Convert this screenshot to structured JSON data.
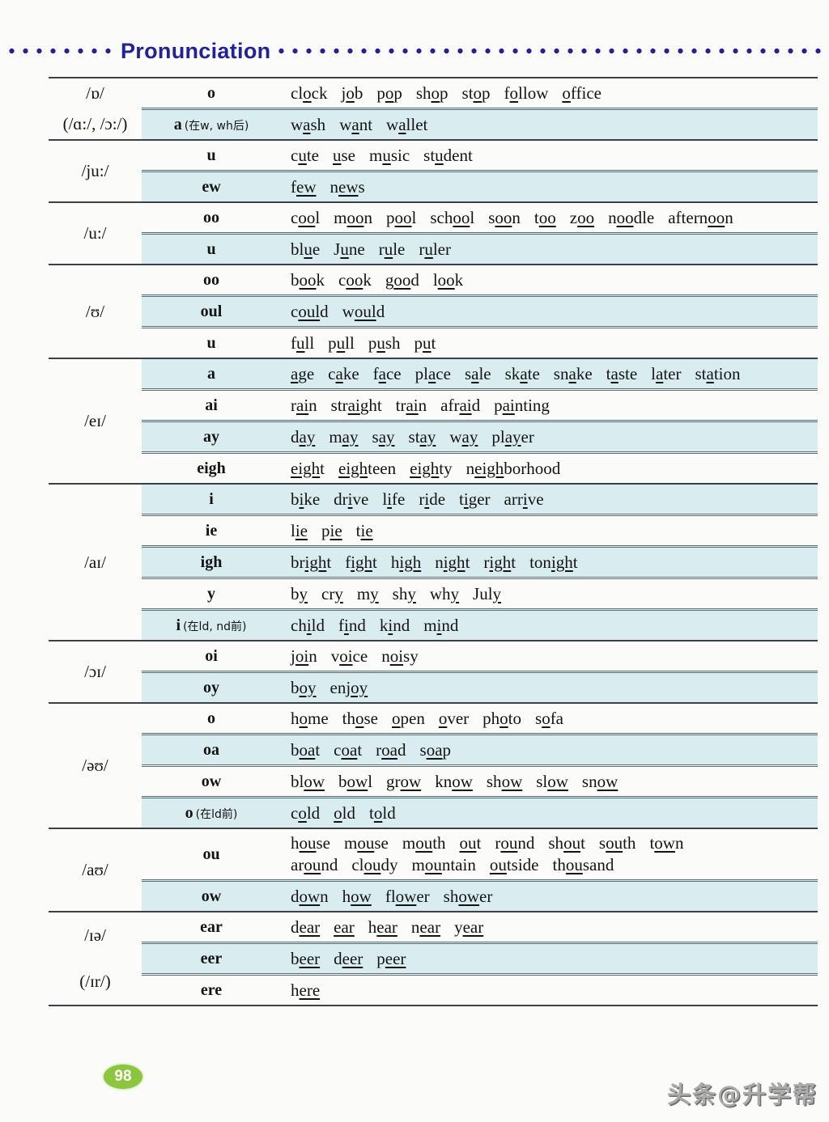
{
  "header": {
    "title": "Pronunciation",
    "accent_color": "#23219a"
  },
  "table": {
    "row_shade_color": "#d9edf1",
    "groups": [
      {
        "symbol": [
          "/ɒ/",
          "(/ɑ:/, /ɔ:/)"
        ],
        "rows": [
          {
            "pattern": "o",
            "note": "",
            "lines": [
              [
                "cl_o_ck",
                "j_o_b",
                "p_o_p",
                "sh_o_p",
                "st_o_p",
                "f_o_llow",
                "_o_ffice"
              ]
            ]
          },
          {
            "pattern": "a",
            "note": "(在w, wh后)",
            "lines": [
              [
                "w_a_sh",
                "w_a_nt",
                "w_a_llet"
              ]
            ]
          }
        ]
      },
      {
        "symbol": [
          "/ju:/"
        ],
        "rows": [
          {
            "pattern": "u",
            "note": "",
            "lines": [
              [
                "c_u_te",
                "_u_se",
                "m_u_sic",
                "st_u_dent"
              ]
            ]
          },
          {
            "pattern": "ew",
            "note": "",
            "lines": [
              [
                "f_ew_",
                "n_ew_s"
              ]
            ]
          }
        ]
      },
      {
        "symbol": [
          "/u:/"
        ],
        "rows": [
          {
            "pattern": "oo",
            "note": "",
            "lines": [
              [
                "c_oo_l",
                "m_oo_n",
                "p_oo_l",
                "sch_oo_l",
                "s_oo_n",
                "t_oo_",
                "z_oo_",
                "n_oo_dle",
                "aftern_oo_n"
              ]
            ]
          },
          {
            "pattern": "u",
            "note": "",
            "lines": [
              [
                "bl_u_e",
                "J_u_ne",
                "r_u_le",
                "r_u_ler"
              ]
            ]
          }
        ]
      },
      {
        "symbol": [
          "/ʊ/"
        ],
        "rows": [
          {
            "pattern": "oo",
            "note": "",
            "lines": [
              [
                "b_oo_k",
                "c_oo_k",
                "g_oo_d",
                "l_oo_k"
              ]
            ]
          },
          {
            "pattern": "oul",
            "note": "",
            "lines": [
              [
                "c_oul_d",
                "w_oul_d"
              ]
            ]
          },
          {
            "pattern": "u",
            "note": "",
            "lines": [
              [
                "f_u_ll",
                "p_u_ll",
                "p_u_sh",
                "p_u_t"
              ]
            ]
          }
        ]
      },
      {
        "symbol": [
          "/eɪ/"
        ],
        "rows": [
          {
            "pattern": "a",
            "note": "",
            "lines": [
              [
                "_a_ge",
                "c_a_ke",
                "f_a_ce",
                "pl_a_ce",
                "s_a_le",
                "sk_a_te",
                "sn_a_ke",
                "t_a_ste",
                "l_a_ter",
                "st_a_tion"
              ]
            ]
          },
          {
            "pattern": "ai",
            "note": "",
            "lines": [
              [
                "r_ai_n",
                "str_ai_ght",
                "tr_ai_n",
                "afr_ai_d",
                "p_ai_nting"
              ]
            ]
          },
          {
            "pattern": "ay",
            "note": "",
            "lines": [
              [
                "d_ay_",
                "m_ay_",
                "s_ay_",
                "st_ay_",
                "w_ay_",
                "pl_ay_er"
              ]
            ]
          },
          {
            "pattern": "eigh",
            "note": "",
            "lines": [
              [
                "_eigh_t",
                "_eigh_teen",
                "_eigh_ty",
                "n_eigh_borhood"
              ]
            ]
          }
        ]
      },
      {
        "symbol": [
          "/aɪ/"
        ],
        "rows": [
          {
            "pattern": "i",
            "note": "",
            "lines": [
              [
                "b_i_ke",
                "dr_i_ve",
                "l_i_fe",
                "r_i_de",
                "t_i_ger",
                "arr_i_ve"
              ]
            ]
          },
          {
            "pattern": "ie",
            "note": "",
            "lines": [
              [
                "l_ie_",
                "p_ie_",
                "t_ie_"
              ]
            ]
          },
          {
            "pattern": "igh",
            "note": "",
            "lines": [
              [
                "br_igh_t",
                "f_igh_t",
                "h_igh_",
                "n_igh_t",
                "r_igh_t",
                "ton_igh_t"
              ]
            ]
          },
          {
            "pattern": "y",
            "note": "",
            "lines": [
              [
                "b_y_",
                "cr_y_",
                "m_y_",
                "sh_y_",
                "wh_y_",
                "Jul_y_"
              ]
            ]
          },
          {
            "pattern": "i",
            "note": "(在ld, nd前)",
            "lines": [
              [
                "ch_i_ld",
                "f_i_nd",
                "k_i_nd",
                "m_i_nd"
              ]
            ]
          }
        ]
      },
      {
        "symbol": [
          "/ɔɪ/"
        ],
        "rows": [
          {
            "pattern": "oi",
            "note": "",
            "lines": [
              [
                "j_oi_n",
                "v_oi_ce",
                "n_oi_sy"
              ]
            ]
          },
          {
            "pattern": "oy",
            "note": "",
            "lines": [
              [
                "b_oy_",
                "enj_oy_"
              ]
            ]
          }
        ]
      },
      {
        "symbol": [
          "/əʊ/"
        ],
        "rows": [
          {
            "pattern": "o",
            "note": "",
            "lines": [
              [
                "h_o_me",
                "th_o_se",
                "_o_pen",
                "_o_ver",
                "ph_o_to",
                "s_o_fa"
              ]
            ]
          },
          {
            "pattern": "oa",
            "note": "",
            "lines": [
              [
                "b_oa_t",
                "c_oa_t",
                "r_oa_d",
                "s_oa_p"
              ]
            ]
          },
          {
            "pattern": "ow",
            "note": "",
            "lines": [
              [
                "bl_ow_",
                "b_ow_l",
                "gr_ow_",
                "kn_ow_",
                "sh_ow_",
                "sl_ow_",
                "sn_ow_"
              ]
            ]
          },
          {
            "pattern": "o",
            "note": "(在ld前)",
            "lines": [
              [
                "c_o_ld",
                "_o_ld",
                "t_o_ld"
              ]
            ]
          }
        ]
      },
      {
        "symbol": [
          "/aʊ/"
        ],
        "rows": [
          {
            "pattern": "ou",
            "note": "",
            "lines": [
              [
                "h_ou_se",
                "m_ou_se",
                "m_ou_th",
                "_ou_t",
                "r_ou_nd",
                "sh_ou_t",
                "s_ou_th",
                "t_ow_n"
              ],
              [
                "ar_ou_nd",
                "cl_ou_dy",
                "m_ou_ntain",
                "_ou_tside",
                "th_ou_sand"
              ]
            ]
          },
          {
            "pattern": "ow",
            "note": "",
            "lines": [
              [
                "d_ow_n",
                "h_ow_",
                "fl_ow_er",
                "sh_ow_er"
              ]
            ]
          }
        ]
      },
      {
        "symbol": [
          "/ɪə/",
          "(/ɪr/)"
        ],
        "rows": [
          {
            "pattern": "ear",
            "note": "",
            "lines": [
              [
                "d_ear_",
                "_ear_",
                "h_ear_",
                "n_ear_",
                "y_ear_"
              ]
            ]
          },
          {
            "pattern": "eer",
            "note": "",
            "lines": [
              [
                "b_eer_",
                "d_eer_",
                "p_eer_"
              ]
            ]
          },
          {
            "pattern": "ere",
            "note": "",
            "lines": [
              [
                "h_ere_"
              ]
            ]
          }
        ]
      }
    ]
  },
  "footer": {
    "page_number": "98",
    "page_badge_color": "#8cc63e",
    "watermark": "头条@升学帮"
  }
}
